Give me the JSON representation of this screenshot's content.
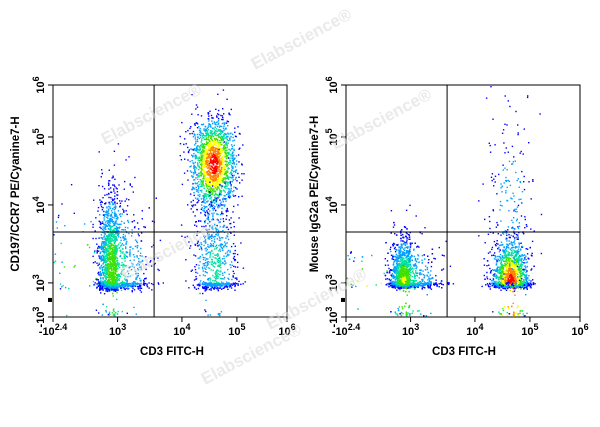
{
  "watermark": "Elabscience®",
  "chart_data": [
    {
      "type": "scatter",
      "subtype": "flow-cytometry-density-dot-plot",
      "xlabel": "CD3 FITC-H",
      "ylabel": "CD197/CCR7 PE/Cyanine7-H",
      "x_scale": "biexponential",
      "y_scale": "biexponential",
      "x_ticks": [
        "-10",
        "2.4",
        "3",
        "4",
        "5",
        "6"
      ],
      "y_ticks": [
        "-10",
        "3",
        "3",
        "4",
        "5",
        "6"
      ],
      "x_tick_display": [
        {
          "base": "-10",
          "exp": "2.4"
        },
        {
          "base": "10",
          "exp": "3"
        },
        {
          "base": "10",
          "exp": "4"
        },
        {
          "base": "10",
          "exp": "5"
        },
        {
          "base": "10",
          "exp": "6"
        }
      ],
      "y_tick_display": [
        {
          "base": "-10",
          "exp": "3"
        },
        {
          "base": "10",
          "exp": "3"
        },
        {
          "base": "10",
          "exp": "4"
        },
        {
          "base": "10",
          "exp": "5"
        },
        {
          "base": "10",
          "exp": "6"
        }
      ],
      "quadrant_gate": {
        "x": 3700,
        "y": 4500
      },
      "color_scale": [
        "#0000ff",
        "#00a0ff",
        "#00e0a0",
        "#40e000",
        "#ffff00",
        "#ff8000",
        "#ff0000"
      ],
      "populations": [
        {
          "x_center": 500,
          "y_center": 1500,
          "x_spread_decades": 0.36,
          "y_spread_decades": 0.45,
          "events": 2200,
          "peak_color": "green"
        },
        {
          "x_center": 38000,
          "y_center": 40000,
          "x_spread_decades": 0.2,
          "y_spread_decades": 0.34,
          "events": 1700,
          "peak_color": "red"
        },
        {
          "x_center": 40000,
          "y_center": 1600,
          "x_spread_decades": 0.2,
          "y_spread_decades": 0.45,
          "events": 700,
          "peak_color": "cyan"
        }
      ]
    },
    {
      "type": "scatter",
      "subtype": "flow-cytometry-density-dot-plot",
      "xlabel": "CD3 FITC-H",
      "ylabel": "Mouse IgG2a PE/Cyanine7-H",
      "x_scale": "biexponential",
      "y_scale": "biexponential",
      "x_ticks": [
        "-10",
        "2.4",
        "3",
        "4",
        "5",
        "6"
      ],
      "y_ticks": [
        "-10",
        "3",
        "3",
        "4",
        "5",
        "6"
      ],
      "x_tick_display": [
        {
          "base": "-10",
          "exp": "2.4"
        },
        {
          "base": "10",
          "exp": "3"
        },
        {
          "base": "10",
          "exp": "4"
        },
        {
          "base": "10",
          "exp": "5"
        },
        {
          "base": "10",
          "exp": "6"
        }
      ],
      "y_tick_display": [
        {
          "base": "-10",
          "exp": "3"
        },
        {
          "base": "10",
          "exp": "3"
        },
        {
          "base": "10",
          "exp": "4"
        },
        {
          "base": "10",
          "exp": "5"
        },
        {
          "base": "10",
          "exp": "6"
        }
      ],
      "quadrant_gate": {
        "x": 3700,
        "y": 4500
      },
      "color_scale": [
        "#0000ff",
        "#00a0ff",
        "#00e0a0",
        "#40e000",
        "#ffff00",
        "#ff8000",
        "#ff0000"
      ],
      "populations": [
        {
          "x_center": 450,
          "y_center": 1000,
          "x_spread_decades": 0.36,
          "y_spread_decades": 0.26,
          "events": 2400,
          "peak_color": "yellow-green"
        },
        {
          "x_center": 45000,
          "y_center": 1000,
          "x_spread_decades": 0.16,
          "y_spread_decades": 0.26,
          "events": 2000,
          "peak_color": "red"
        },
        {
          "x_center": 45000,
          "y_center": 8000,
          "x_spread_decades": 0.22,
          "y_spread_decades": 0.75,
          "events": 220,
          "peak_color": "blue"
        }
      ]
    }
  ]
}
